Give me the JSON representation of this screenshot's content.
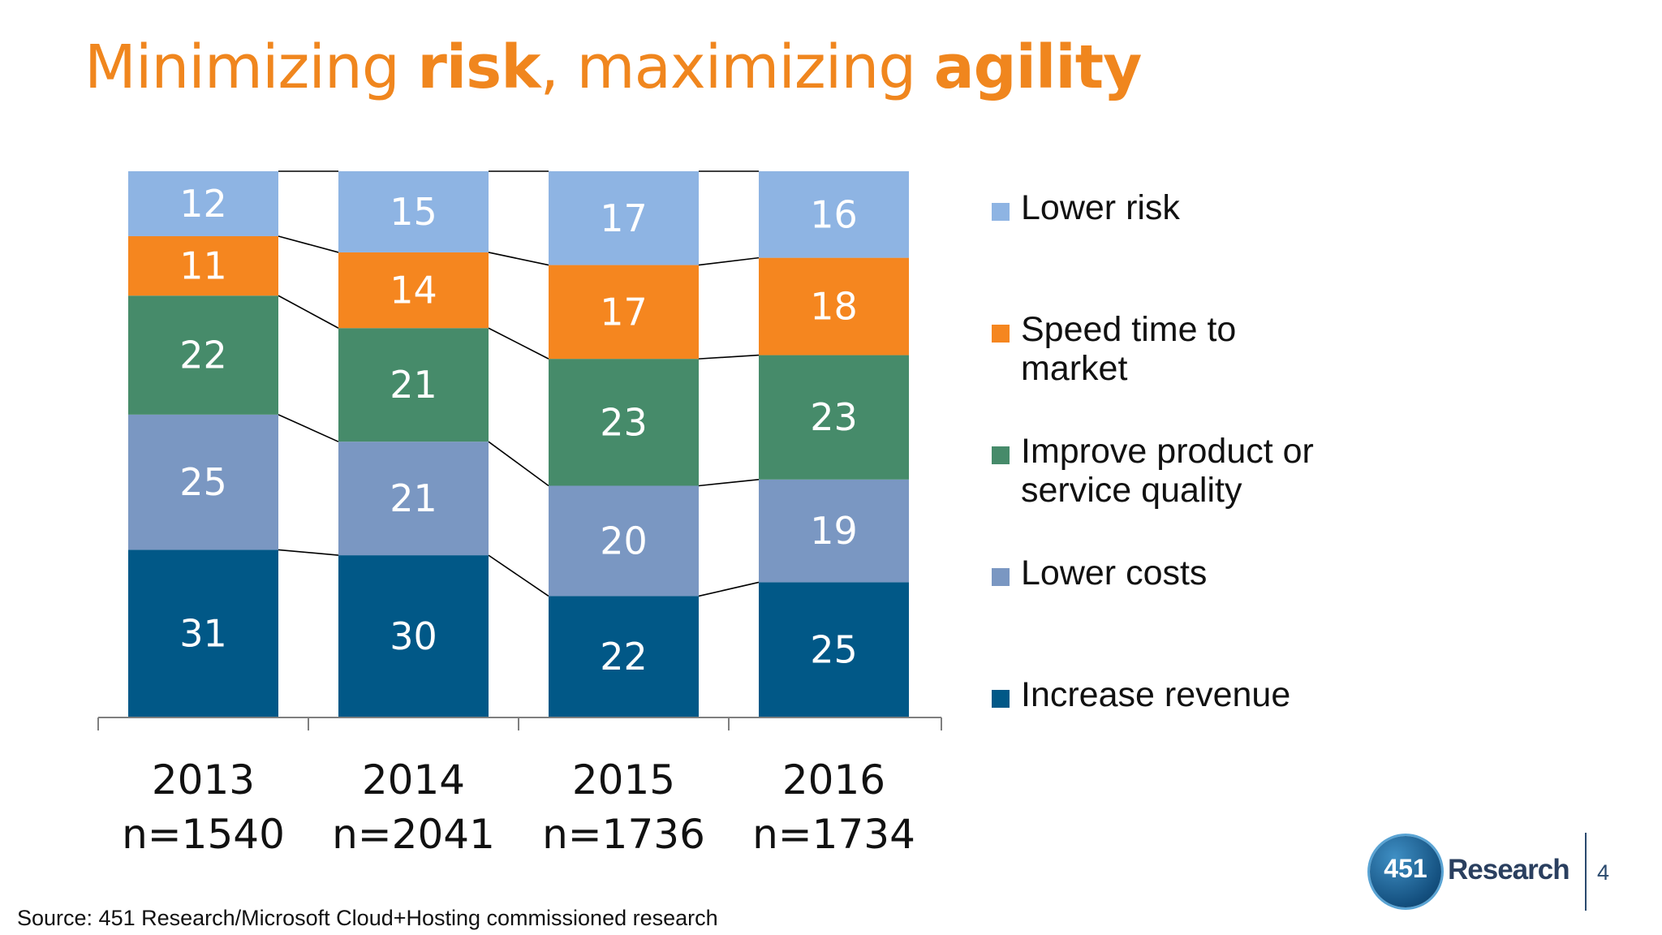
{
  "title": {
    "part1": "Minimizing ",
    "bold1": "risk",
    "part2": ", maximizing ",
    "bold2": "agility"
  },
  "chart_data": {
    "type": "bar",
    "stacked": true,
    "categories": [
      "2013",
      "2014",
      "2015",
      "2016"
    ],
    "category_sublabels": [
      "n=1540",
      "n=2041",
      "n=1736",
      "n=1734"
    ],
    "series": [
      {
        "name": "Increase revenue",
        "color": "#015887",
        "values": [
          31,
          30,
          22,
          25
        ]
      },
      {
        "name": "Lower costs",
        "color": "#7A97C2",
        "values": [
          25,
          21,
          20,
          19
        ]
      },
      {
        "name": "Improve product or service quality",
        "color": "#468B6A",
        "values": [
          22,
          21,
          23,
          23
        ]
      },
      {
        "name": "Speed time to market",
        "color": "#F5861F",
        "values": [
          11,
          14,
          17,
          18
        ]
      },
      {
        "name": "Lower risk",
        "color": "#8EB4E3",
        "values": [
          12,
          15,
          17,
          16
        ]
      }
    ],
    "legend_order": [
      "Lower risk",
      "Speed time to market",
      "Improve product or service quality",
      "Lower costs",
      "Increase revenue"
    ],
    "legend_labels": [
      [
        "Lower risk"
      ],
      [
        "Speed time to",
        "market"
      ],
      [
        "Improve product or",
        "service quality"
      ],
      [
        "Lower costs"
      ],
      [
        "Increase revenue"
      ]
    ],
    "legend_position": "right",
    "series_lines": true,
    "grid": false
  },
  "source": "Source: 451 Research/Microsoft Cloud+Hosting commissioned research",
  "logo": {
    "number": "451",
    "word": "Research"
  },
  "page_number": "4"
}
